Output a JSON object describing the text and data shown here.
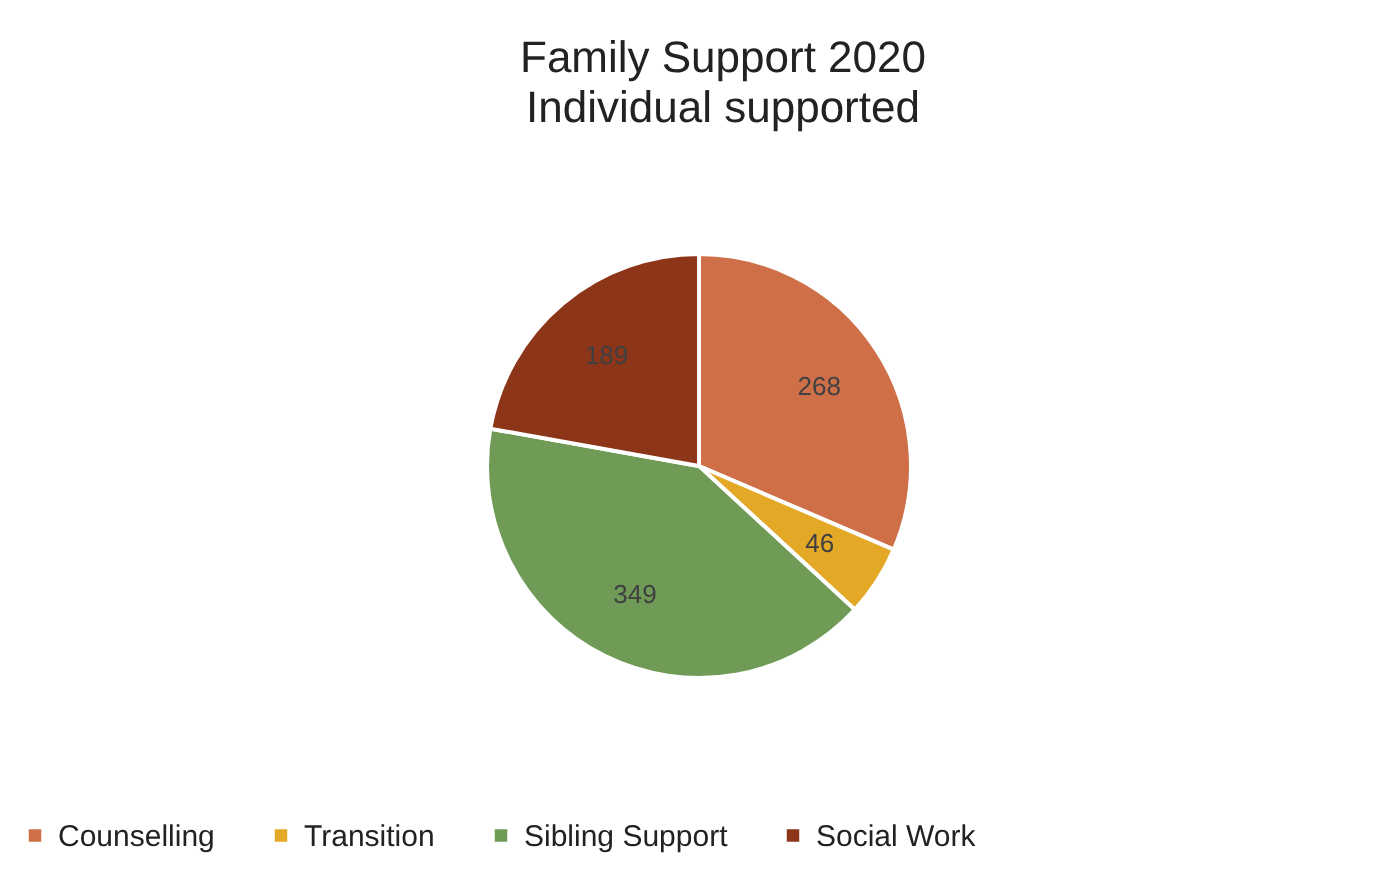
{
  "chart_data": {
    "type": "pie",
    "title": "Family Support 2020",
    "subtitle": "Individual supported",
    "categories": [
      "Counselling",
      "Transition",
      "Sibling Support",
      "Social Work"
    ],
    "values": [
      268,
      46,
      349,
      189
    ],
    "colors": [
      "#cf6f47",
      "#e3a825",
      "#6f9b57",
      "#8c3519"
    ],
    "data_labels": true,
    "legend": "bottom"
  }
}
